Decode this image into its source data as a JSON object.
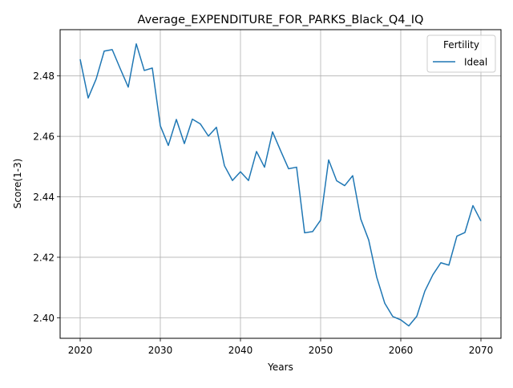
{
  "chart_data": {
    "type": "line",
    "title": "Average_EXPENDITURE_FOR_PARKS_Black_Q4_IQ",
    "xlabel": "Years",
    "ylabel": "Score(1-3)",
    "xlim": [
      2017.5,
      2072.5
    ],
    "ylim": [
      2.3932,
      2.4953
    ],
    "xticks": [
      2020,
      2030,
      2040,
      2050,
      2060,
      2070
    ],
    "yticks": [
      2.4,
      2.42,
      2.44,
      2.46,
      2.48
    ],
    "ytick_labels": [
      "2.40",
      "2.42",
      "2.44",
      "2.46",
      "2.48"
    ],
    "grid": true,
    "legend": {
      "title": "Fertility",
      "placement": "top-right"
    },
    "x": [
      2020,
      2021,
      2022,
      2023,
      2024,
      2025,
      2026,
      2027,
      2028,
      2029,
      2030,
      2031,
      2032,
      2033,
      2034,
      2035,
      2036,
      2037,
      2038,
      2039,
      2040,
      2041,
      2042,
      2043,
      2044,
      2045,
      2046,
      2047,
      2048,
      2049,
      2050,
      2051,
      2052,
      2053,
      2054,
      2055,
      2056,
      2057,
      2058,
      2059,
      2060,
      2061,
      2062,
      2063,
      2064,
      2065,
      2066,
      2067,
      2068,
      2069,
      2070
    ],
    "series": [
      {
        "name": "Ideal",
        "color": "#1f77b4",
        "values": [
          2.4855,
          2.4727,
          2.479,
          2.4882,
          2.4887,
          2.4824,
          2.4763,
          2.4906,
          2.4818,
          2.4826,
          2.4635,
          2.457,
          2.4656,
          2.4576,
          2.4657,
          2.4641,
          2.4601,
          2.463,
          2.4503,
          2.4454,
          2.4483,
          2.4454,
          2.455,
          2.4498,
          2.4615,
          2.4553,
          2.4493,
          2.4498,
          2.4281,
          2.4285,
          2.4323,
          2.4522,
          2.4453,
          2.4437,
          2.447,
          2.4327,
          2.4257,
          2.4134,
          2.4048,
          2.4004,
          2.3993,
          2.3973,
          2.4005,
          2.4088,
          2.4142,
          2.4182,
          2.4174,
          2.427,
          2.4282,
          2.4371,
          2.432
        ]
      }
    ]
  }
}
